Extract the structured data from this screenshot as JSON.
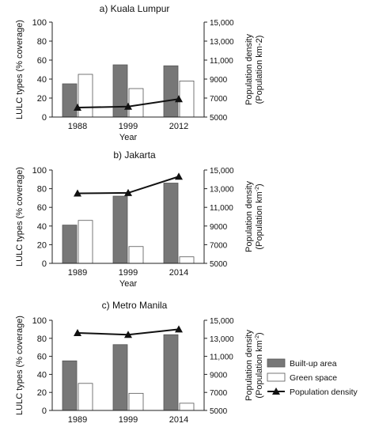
{
  "colors": {
    "built_up": "#777777",
    "built_up_stroke": "#555555",
    "green_space": "#ffffff",
    "green_space_stroke": "#555555",
    "line": "#111111",
    "axis": "#222222"
  },
  "legend": {
    "entries": [
      {
        "label": "Built-up area",
        "kind": "bar-gray"
      },
      {
        "label": "Green space",
        "kind": "bar-white"
      },
      {
        "label": "Population density",
        "kind": "line-triangle"
      }
    ],
    "placement": "right of panel c"
  },
  "chart_data": [
    {
      "type": "bar",
      "title": "a) Kuala Lumpur",
      "xlabel": "Year",
      "ylabel": "LULC types (% coverage)",
      "y2label_line1": "Population density",
      "y2label_line2": "(Population km-2)",
      "y2label_sup": "",
      "categories": [
        "1988",
        "1999",
        "2012"
      ],
      "ylim": [
        0,
        100
      ],
      "yticks": [
        "0",
        "20",
        "40",
        "60",
        "80",
        "100"
      ],
      "y2lim": [
        5000,
        15000
      ],
      "y2ticks": [
        "5000",
        "7000",
        "9000",
        "11,000",
        "13,000",
        "15,000"
      ],
      "series": [
        {
          "name": "Built-up area",
          "kind": "bar",
          "values": [
            35,
            55,
            54
          ]
        },
        {
          "name": "Green space",
          "kind": "bar",
          "values": [
            45,
            30,
            38
          ]
        },
        {
          "name": "Population density",
          "kind": "line",
          "axis": "right",
          "values": [
            6000,
            6100,
            6900
          ]
        }
      ]
    },
    {
      "type": "bar",
      "title": "b) Jakarta",
      "xlabel": "Year",
      "ylabel": "LULC types (% coverage)",
      "y2label_line1": "Population density",
      "y2label_line2": "(Population km",
      "y2label_sup": "-2",
      "categories": [
        "1989",
        "1999",
        "2014"
      ],
      "ylim": [
        0,
        100
      ],
      "yticks": [
        "0",
        "20",
        "40",
        "60",
        "80",
        "100"
      ],
      "y2lim": [
        5000,
        15000
      ],
      "y2ticks": [
        "5000",
        "7000",
        "9000",
        "11,000",
        "13,000",
        "15,000"
      ],
      "series": [
        {
          "name": "Built-up area",
          "kind": "bar",
          "values": [
            41,
            72,
            86
          ]
        },
        {
          "name": "Green space",
          "kind": "bar",
          "values": [
            46,
            18,
            7
          ]
        },
        {
          "name": "Population density",
          "kind": "line",
          "axis": "right",
          "values": [
            12500,
            12550,
            14300
          ]
        }
      ]
    },
    {
      "type": "bar",
      "title": "c) Metro Manila",
      "xlabel": "",
      "ylabel": "LULC types (% coverage)",
      "y2label_line1": "Population density",
      "y2label_line2": "(Population km",
      "y2label_sup": "-2",
      "categories": [
        "1989",
        "1999",
        "2014"
      ],
      "ylim": [
        0,
        100
      ],
      "yticks": [
        "0",
        "20",
        "40",
        "60",
        "80",
        "100"
      ],
      "y2lim": [
        5000,
        15000
      ],
      "y2ticks": [
        "5000",
        "7000",
        "9000",
        "11,000",
        "13,000",
        "15,000"
      ],
      "series": [
        {
          "name": "Built-up area",
          "kind": "bar",
          "values": [
            55,
            73,
            84
          ]
        },
        {
          "name": "Green space",
          "kind": "bar",
          "values": [
            30,
            19,
            8
          ]
        },
        {
          "name": "Population density",
          "kind": "line",
          "axis": "right",
          "values": [
            13600,
            13400,
            14000
          ]
        }
      ]
    }
  ]
}
